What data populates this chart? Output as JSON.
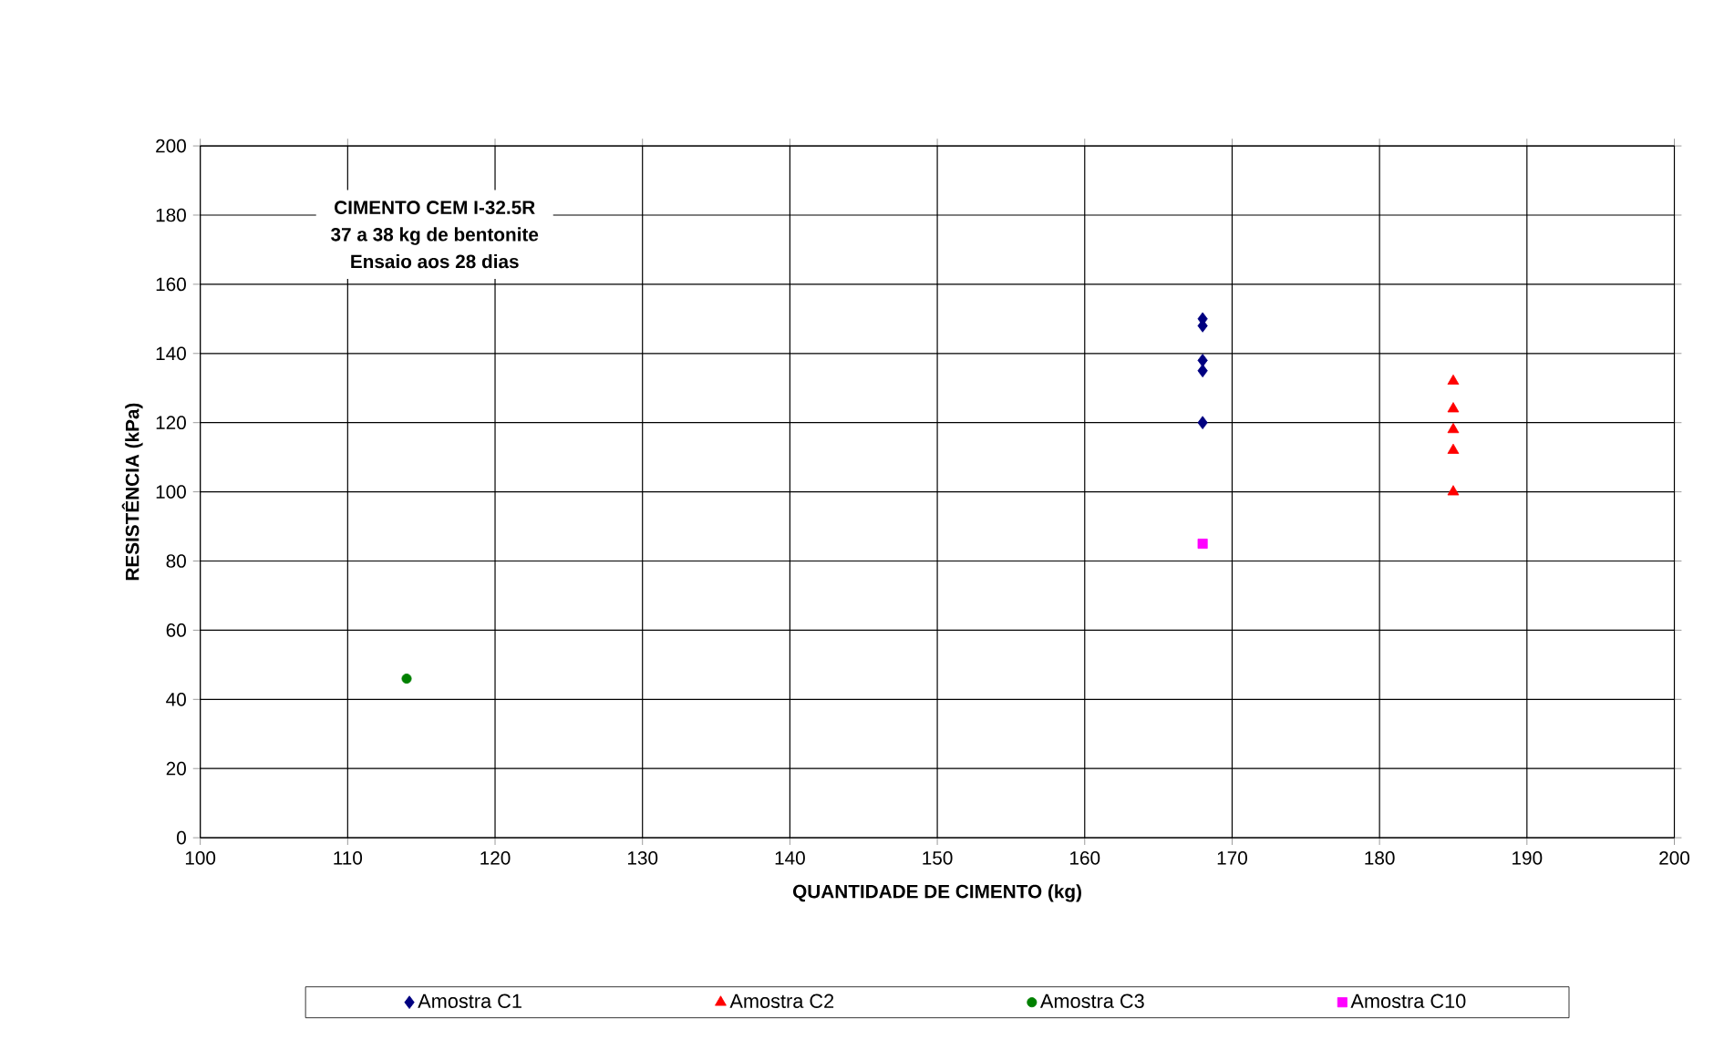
{
  "chart_data": {
    "type": "scatter",
    "xlabel": "QUANTIDADE DE CIMENTO (kg)",
    "ylabel": "RESISTÊNCIA (kPa)",
    "annotations": [
      "CIMENTO CEM I-32.5R",
      "37 a 38 kg de bentonite",
      "Ensaio aos 28 dias"
    ],
    "xlim": [
      100,
      200
    ],
    "ylim": [
      0,
      200
    ],
    "xticks": [
      100,
      110,
      120,
      130,
      140,
      150,
      160,
      170,
      180,
      190,
      200
    ],
    "yticks": [
      0,
      20,
      40,
      60,
      80,
      100,
      120,
      140,
      160,
      180,
      200
    ],
    "grid": true,
    "legend": "bottom",
    "series": [
      {
        "name": "Amostra C1",
        "color": "#000080",
        "marker": "diamond",
        "x": [
          168,
          168,
          168,
          168,
          168
        ],
        "values": [
          150,
          148,
          138,
          135,
          120
        ]
      },
      {
        "name": "Amostra C2",
        "color": "#ff0000",
        "marker": "triangle",
        "x": [
          185,
          185,
          185,
          185,
          185
        ],
        "values": [
          132,
          124,
          118,
          112,
          100
        ]
      },
      {
        "name": "Amostra C3",
        "color": "#008000",
        "marker": "circle",
        "x": [
          114
        ],
        "values": [
          46
        ]
      },
      {
        "name": "Amostra C10",
        "color": "#ff00ff",
        "marker": "square",
        "x": [
          168
        ],
        "values": [
          85
        ]
      }
    ]
  }
}
